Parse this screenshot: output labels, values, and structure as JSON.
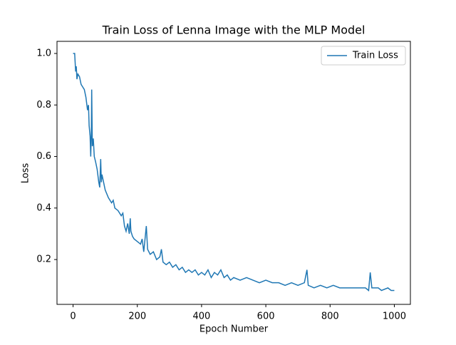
{
  "chart_data": {
    "type": "line",
    "title": "Train Loss of Lenna Image with the MLP Model",
    "xlabel": "Epoch Number",
    "ylabel": "Loss",
    "x": [
      0,
      5,
      8,
      10,
      12,
      15,
      20,
      25,
      30,
      35,
      40,
      45,
      48,
      50,
      53,
      55,
      57,
      58,
      60,
      63,
      66,
      70,
      75,
      80,
      83,
      86,
      88,
      90,
      95,
      100,
      110,
      120,
      125,
      130,
      140,
      150,
      155,
      160,
      165,
      170,
      175,
      178,
      180,
      185,
      190,
      200,
      210,
      215,
      220,
      228,
      232,
      240,
      250,
      260,
      270,
      275,
      280,
      290,
      300,
      310,
      320,
      330,
      340,
      350,
      360,
      370,
      380,
      390,
      400,
      410,
      420,
      430,
      440,
      450,
      460,
      470,
      480,
      490,
      500,
      520,
      540,
      560,
      580,
      600,
      620,
      640,
      660,
      680,
      700,
      720,
      728,
      732,
      750,
      770,
      790,
      810,
      830,
      850,
      870,
      890,
      910,
      920,
      925,
      930,
      950,
      960,
      980,
      990,
      1000
    ],
    "series": [
      {
        "name": "Train Loss",
        "color": "#1f77b4",
        "values": [
          1.0,
          1.0,
          0.93,
          0.95,
          0.9,
          0.92,
          0.91,
          0.88,
          0.87,
          0.86,
          0.83,
          0.78,
          0.8,
          0.72,
          0.68,
          0.6,
          0.7,
          0.86,
          0.64,
          0.67,
          0.6,
          0.58,
          0.55,
          0.5,
          0.48,
          0.59,
          0.5,
          0.53,
          0.5,
          0.47,
          0.44,
          0.42,
          0.43,
          0.4,
          0.39,
          0.37,
          0.38,
          0.33,
          0.31,
          0.34,
          0.3,
          0.36,
          0.31,
          0.29,
          0.28,
          0.27,
          0.26,
          0.28,
          0.23,
          0.33,
          0.24,
          0.22,
          0.23,
          0.2,
          0.21,
          0.24,
          0.19,
          0.18,
          0.19,
          0.17,
          0.18,
          0.16,
          0.17,
          0.15,
          0.16,
          0.15,
          0.16,
          0.14,
          0.15,
          0.14,
          0.16,
          0.13,
          0.15,
          0.14,
          0.16,
          0.13,
          0.14,
          0.12,
          0.13,
          0.12,
          0.13,
          0.12,
          0.11,
          0.12,
          0.11,
          0.11,
          0.1,
          0.11,
          0.1,
          0.11,
          0.16,
          0.1,
          0.09,
          0.1,
          0.09,
          0.1,
          0.09,
          0.09,
          0.09,
          0.09,
          0.09,
          0.08,
          0.15,
          0.09,
          0.09,
          0.08,
          0.09,
          0.08,
          0.08
        ]
      }
    ],
    "xlim": [
      -50,
      1050
    ],
    "xticks": [
      0,
      200,
      400,
      600,
      800,
      1000
    ],
    "ylim": [
      0.026,
      1.047
    ],
    "yticks": [
      0.2,
      0.4,
      0.6,
      0.8,
      {
        "value": 1,
        "label": "1.0"
      }
    ],
    "legend": "upper right"
  }
}
